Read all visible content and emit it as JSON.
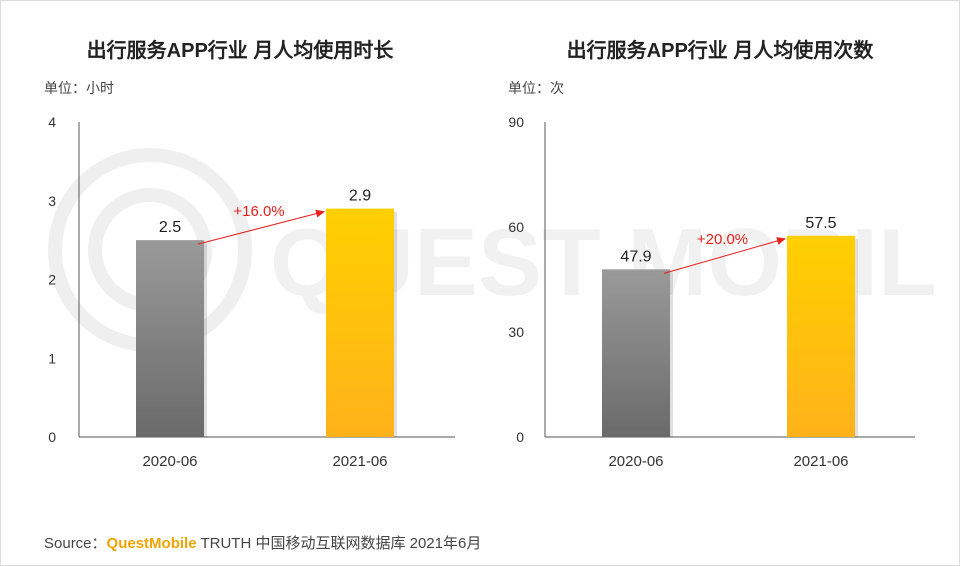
{
  "watermark_text": "QUEST MOBILE",
  "source": {
    "prefix": "Source：",
    "brand": "QuestMobile",
    "suffix": "TRUTH 中国移动互联网数据库 2021年6月"
  },
  "colors": {
    "bar_gray_top": "#9a9a9a",
    "bar_gray_bottom": "#6a6a6a",
    "bar_yellow_top": "#ffd000",
    "bar_yellow_bottom": "#ffb21a",
    "arrow": "#e8211c",
    "brand": "#f0a400"
  },
  "chart_data": [
    {
      "type": "bar",
      "title": "出行服务APP行业 月人均使用时长",
      "unit": "单位：小时",
      "categories": [
        "2020-06",
        "2021-06"
      ],
      "values": [
        2.5,
        2.9
      ],
      "value_labels": [
        "2.5",
        "2.9"
      ],
      "yticks": [
        "0",
        "1",
        "2",
        "3",
        "4"
      ],
      "ylim": [
        0,
        4
      ],
      "growth_label": "+16.0%",
      "grid": false
    },
    {
      "type": "bar",
      "title": "出行服务APP行业 月人均使用次数",
      "unit": "单位：次",
      "categories": [
        "2020-06",
        "2021-06"
      ],
      "values": [
        47.9,
        57.5
      ],
      "value_labels": [
        "47.9",
        "57.5"
      ],
      "yticks": [
        "0",
        "30",
        "60",
        "90"
      ],
      "ylim": [
        0,
        90
      ],
      "growth_label": "+20.0%",
      "grid": false
    }
  ]
}
